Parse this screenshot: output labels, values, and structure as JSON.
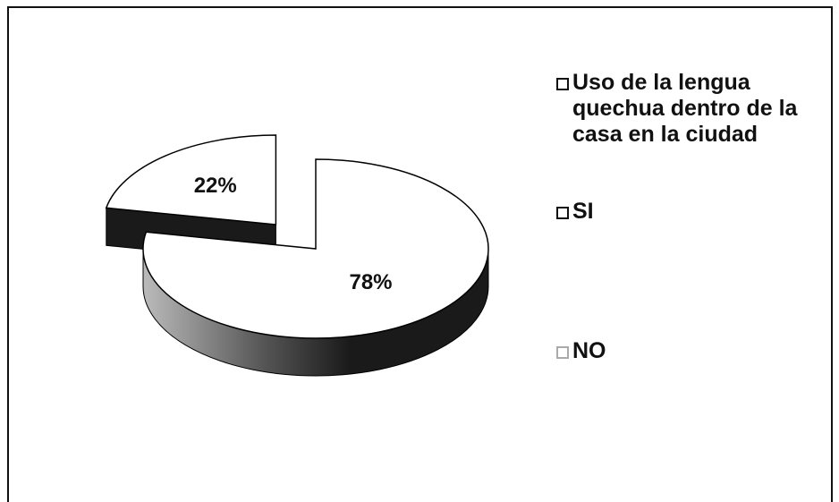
{
  "chart_data": {
    "type": "pie",
    "series_name": "Uso de la lengua quechua dentro de la casa en la ciudad",
    "categories": [
      "SI",
      "NO"
    ],
    "values": [
      78,
      22
    ],
    "value_labels": [
      "78%",
      "22%"
    ],
    "colors": [
      "#ffffff",
      "#ffffff"
    ],
    "side_color": "#1a1a1a",
    "exploded": [
      false,
      true
    ]
  }
}
